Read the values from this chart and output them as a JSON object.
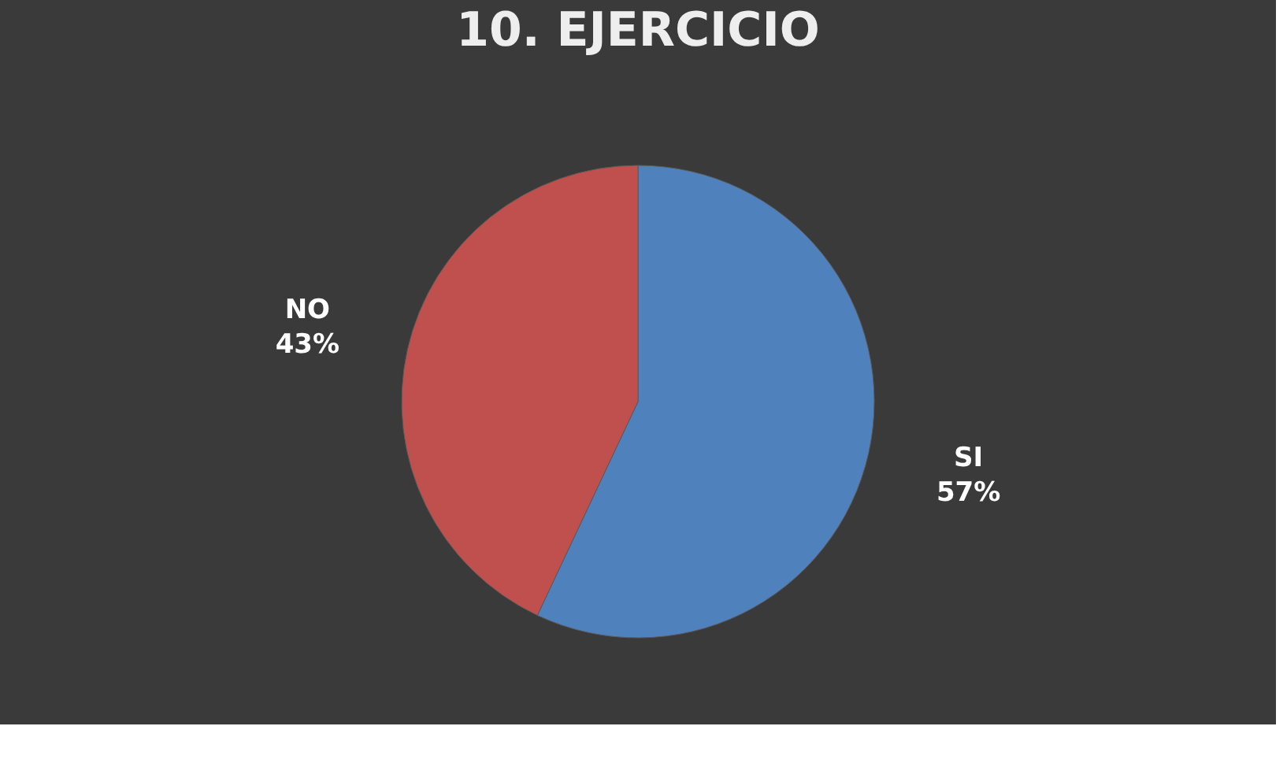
{
  "chart_data": {
    "type": "pie",
    "title": "10. EJERCICIO",
    "categories": [
      "SI",
      "NO"
    ],
    "values": [
      57,
      43
    ],
    "colors": [
      "#4f81bd",
      "#c0504d"
    ],
    "value_labels": [
      "57%",
      "43%"
    ],
    "legend": false
  }
}
